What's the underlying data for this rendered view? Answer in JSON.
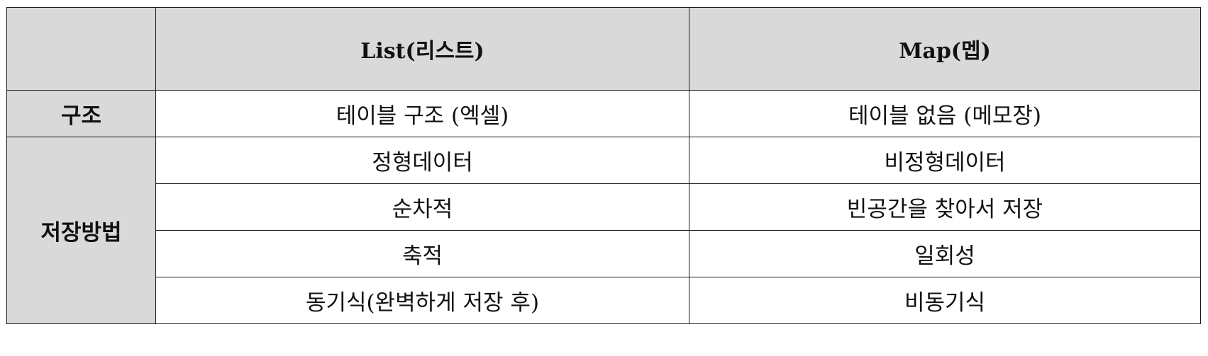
{
  "table": {
    "headers": [
      "",
      "List(리스트)",
      "Map(멥)"
    ],
    "groups": [
      {
        "label": "구조",
        "rows": [
          [
            "테이블 구조 (엑셀)",
            "테이블 없음 (메모장)"
          ]
        ]
      },
      {
        "label": "저장방법",
        "rows": [
          [
            "정형데이터",
            "비정형데이터"
          ],
          [
            "순차적",
            "빈공간을 찾아서 저장"
          ],
          [
            "축적",
            "일회성"
          ],
          [
            "동기식(완벽하게 저장 후)",
            "비동기식"
          ]
        ]
      }
    ],
    "colors": {
      "header_bg": "#d9d9d9",
      "border": "#1a1a1a",
      "cell_bg": "#ffffff"
    }
  }
}
